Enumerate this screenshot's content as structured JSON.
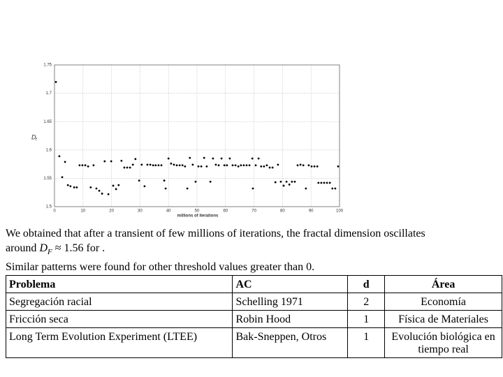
{
  "chart_data": {
    "type": "scatter",
    "xlabel": "millions of iterations",
    "ylabel": "D",
    "ylabel_sub": "f",
    "x": [
      0.5,
      1.7,
      2.7,
      3.7,
      4.7,
      5.6,
      6.9,
      7.8,
      8.8,
      9.8,
      10.8,
      11.8,
      12.7,
      13.7,
      14.7,
      15.7,
      16.7,
      17.6,
      18.9,
      19.9,
      20.6,
      21.6,
      22.5,
      23.5,
      24.5,
      25.5,
      26.5,
      27.5,
      28.4,
      29.7,
      30.6,
      31.6,
      32.6,
      33.6,
      34.6,
      35.5,
      36.5,
      37.5,
      38.5,
      39.0,
      40.0,
      40.9,
      41.9,
      42.9,
      43.9,
      44.9,
      45.8,
      46.6,
      47.5,
      48.5,
      49.5,
      50.5,
      51.5,
      52.5,
      53.4,
      54.7,
      55.6,
      56.6,
      57.6,
      58.6,
      59.6,
      60.5,
      61.5,
      62.5,
      63.5,
      64.5,
      65.4,
      66.4,
      67.4,
      68.4,
      69.4,
      69.6,
      70.6,
      71.6,
      72.5,
      73.5,
      74.5,
      75.5,
      76.5,
      77.5,
      78.4,
      79.4,
      80.4,
      81.4,
      82.4,
      83.3,
      84.3,
      85.3,
      86.3,
      87.3,
      88.2,
      89.2,
      90.2,
      91.2,
      92.2,
      92.6,
      93.6,
      94.6,
      95.6,
      96.6,
      97.5,
      98.5,
      99.5
    ],
    "values": [
      1.72,
      1.589,
      1.552,
      1.579,
      1.538,
      1.536,
      1.534,
      1.534,
      1.573,
      1.573,
      1.573,
      1.571,
      1.534,
      1.573,
      1.532,
      1.528,
      1.523,
      1.58,
      1.522,
      1.58,
      1.537,
      1.531,
      1.538,
      1.581,
      1.569,
      1.569,
      1.569,
      1.574,
      1.584,
      1.546,
      1.574,
      1.536,
      1.574,
      1.574,
      1.573,
      1.573,
      1.573,
      1.573,
      1.546,
      1.532,
      1.585,
      1.576,
      1.574,
      1.573,
      1.573,
      1.573,
      1.571,
      1.532,
      1.586,
      1.574,
      1.544,
      1.571,
      1.571,
      1.586,
      1.571,
      1.544,
      1.585,
      1.574,
      1.573,
      1.585,
      1.573,
      1.573,
      1.585,
      1.573,
      1.573,
      1.571,
      1.573,
      1.573,
      1.573,
      1.573,
      1.585,
      1.532,
      1.573,
      1.585,
      1.571,
      1.571,
      1.573,
      1.569,
      1.569,
      1.543,
      1.574,
      1.544,
      1.537,
      1.544,
      1.539,
      1.544,
      1.544,
      1.573,
      1.574,
      1.573,
      1.532,
      1.573,
      1.571,
      1.571,
      1.571,
      1.542,
      1.542,
      1.542,
      1.542,
      1.542,
      1.532,
      1.532,
      1.571
    ],
    "color": "#000000",
    "xlim": [
      0,
      100
    ],
    "ylim": [
      1.5,
      1.75
    ],
    "xticks": [
      0,
      10,
      20,
      30,
      40,
      50,
      60,
      70,
      80,
      90,
      100
    ],
    "yticks": [
      1.5,
      1.55,
      1.6,
      1.65,
      1.7,
      1.75
    ],
    "grid": true
  },
  "text": {
    "line1": "We obtained  that after a transient of few millions of iterations, the fractal dimension  oscillates",
    "line2_before": "around ",
    "line2_symbol": "D",
    "line2_sub": "F",
    "line2_after": " ≈ 1.56 for  .",
    "line3": "Similar patterns were found for other threshold values greater than 0."
  },
  "table": {
    "header": [
      "Problema",
      "AC",
      "d",
      "Área"
    ],
    "rows": [
      [
        "Segregación racial",
        "Schelling 1971",
        "2",
        "Economía"
      ],
      [
        "Fricción seca",
        "Robin Hood",
        "1",
        "Física de Materiales"
      ],
      [
        "Long Term Evolution Experiment (LTEE)",
        "Bak-Sneppen, Otros",
        "1",
        "Evolución biológica en tiempo real"
      ]
    ]
  }
}
